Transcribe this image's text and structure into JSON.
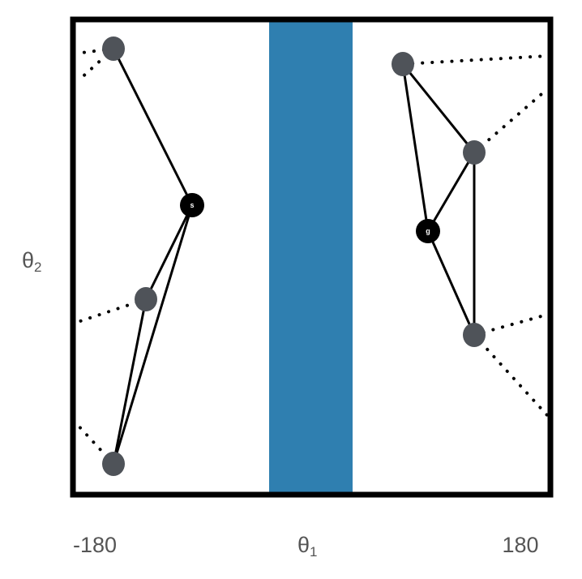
{
  "axes": {
    "x_symbol": "θ",
    "x_subscript": "1",
    "y_symbol": "θ",
    "y_subscript": "2",
    "x_min_label": "-180",
    "x_max_label": "180"
  },
  "colors": {
    "frame": "#000000",
    "obstacle": "#2f7fb0",
    "sample_node": "#4f5359",
    "special_node": "#000000",
    "edge": "#000000",
    "wrap_edge": "#000000",
    "axis_text": "#555555"
  },
  "nodes": [
    {
      "id": "start",
      "label": "s",
      "kind": "special"
    },
    {
      "id": "goal",
      "label": "g",
      "kind": "special"
    }
  ]
}
